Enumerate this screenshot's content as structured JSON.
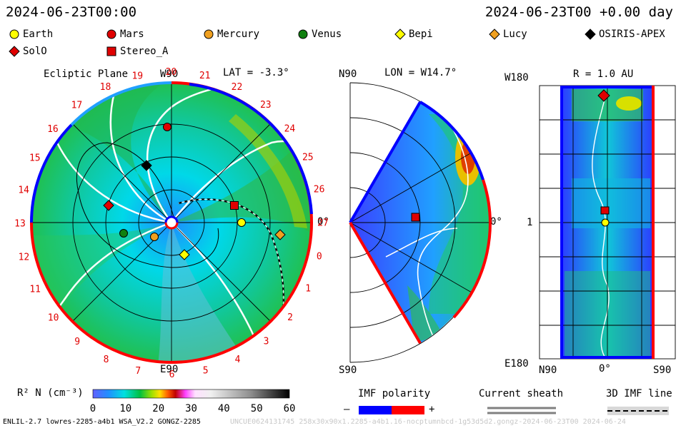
{
  "header": {
    "left_time": "2024-06-23T00:00",
    "right_time": "2024-06-23T00 +0.00 day"
  },
  "legend": [
    {
      "name": "Earth",
      "shape": "circle",
      "color": "#ffff00"
    },
    {
      "name": "Mars",
      "shape": "circle",
      "color": "#e00000"
    },
    {
      "name": "Mercury",
      "shape": "circle",
      "color": "#f0a020"
    },
    {
      "name": "Venus",
      "shape": "circle",
      "color": "#108010"
    },
    {
      "name": "Bepi",
      "shape": "diamond",
      "color": "#ffff00"
    },
    {
      "name": "Lucy",
      "shape": "diamond",
      "color": "#f0a020"
    },
    {
      "name": "OSIRIS-APEX",
      "shape": "diamond",
      "color": "#000000"
    },
    {
      "name": "SolO",
      "shape": "diamond",
      "color": "#e00000"
    },
    {
      "name": "Stereo_A",
      "shape": "square",
      "color": "#e00000"
    }
  ],
  "panel_ecliptic": {
    "title": "Ecliptic Plane",
    "lat": "LAT = -3.3°",
    "top_label": "W90",
    "bottom_label": "E90",
    "right_label": "0°",
    "carrington_numbers": [
      "19",
      "20",
      "21",
      "22",
      "23",
      "24",
      "25",
      "26",
      "27",
      "0",
      "1",
      "2",
      "3",
      "4",
      "5",
      "6",
      "7",
      "8",
      "9",
      "10",
      "11",
      "12",
      "13",
      "14",
      "15",
      "16",
      "17",
      "18"
    ]
  },
  "panel_meridional": {
    "lon": "LON = W14.7°",
    "top_label": "N90",
    "bottom_label": "S90",
    "right_label": "0°"
  },
  "panel_latlon": {
    "title": "R = 1.0 AU",
    "top_left": "W180",
    "bottom_left": "E180",
    "left_mid": "1",
    "bottom_labels": [
      "N90",
      "0°",
      "S90"
    ]
  },
  "colorbar": {
    "label": "R² N (cm⁻³)",
    "ticks": [
      "0",
      "10",
      "20",
      "30",
      "40",
      "50",
      "60"
    ]
  },
  "imf_polarity": {
    "title": "IMF polarity",
    "minus": "–",
    "plus": "+"
  },
  "current_sheath": {
    "title": "Current sheath"
  },
  "imf_line": {
    "title": "3D IMF line"
  },
  "footer": {
    "left": "ENLIL-2.7 lowres-2285-a4b1 WSA_V2.2 GONGZ-2285",
    "right": "UNCUE0624131745 258x30x90x1.2285-a4b1.16-nocptumnbcd-1g53d5d2.gongz-2024-06-23T00 2024-06-24"
  },
  "colors": {
    "polarity_neg": "#0000ff",
    "polarity_pos": "#ff0000"
  }
}
